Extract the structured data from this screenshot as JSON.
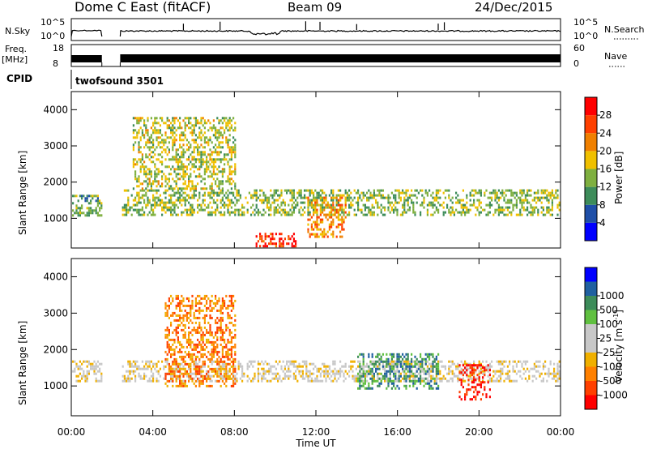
{
  "header": {
    "station": "Dome C East (fitACF)",
    "beam": "Beam 09",
    "date": "24/Dec/2015"
  },
  "noise_panel": {
    "left_label": "N.Sky",
    "right_label": "N.Search",
    "left_ticks": [
      "10^5",
      "10^0"
    ],
    "right_ticks": [
      "10^5",
      "10^0"
    ]
  },
  "freq_panel": {
    "left_label_1": "Freq.",
    "left_label_2": "[MHz]",
    "right_label": "Nave",
    "left_ticks": [
      "18",
      "8"
    ],
    "right_ticks": [
      "60",
      "0"
    ]
  },
  "cpid_panel": {
    "label": "CPID",
    "program": "twofsound 3501"
  },
  "x_axis": {
    "label": "Time UT",
    "ticks": [
      "00:00",
      "04:00",
      "08:00",
      "12:00",
      "16:00",
      "20:00",
      "00:00"
    ]
  },
  "colors": {
    "frame": "#000000",
    "power_scale": [
      "#0000ff",
      "#1f4fa8",
      "#3d8c5a",
      "#7fb040",
      "#f0c000",
      "#f08000",
      "#ff4000",
      "#ff0000"
    ],
    "velocity_scale": [
      "#ff0000",
      "#ff4000",
      "#ff8000",
      "#f0b000",
      "#c8c8c8",
      "#c8c8c8",
      "#60c040",
      "#3d8c5a",
      "#2060a0",
      "#0000ff"
    ]
  },
  "chart_data": [
    {
      "type": "heatmap",
      "title": "",
      "xlabel": "Time UT",
      "ylabel": "Slant Range [km]",
      "xlim_hours": [
        0,
        24
      ],
      "ylim": [
        180,
        4500
      ],
      "yticks": [
        1000,
        2000,
        3000,
        4000
      ],
      "colorbar": {
        "label": "Power [dB]",
        "range": [
          0,
          32
        ],
        "ticks": [
          4,
          8,
          12,
          16,
          20,
          24,
          28
        ]
      },
      "gaps_hours": [
        [
          1.5,
          2.4
        ]
      ],
      "features": [
        {
          "description_hours": [
            0,
            1.5
          ],
          "range_km": [
            1100,
            1650
          ],
          "level_db": 12
        },
        {
          "description_hours": [
            2.4,
            24
          ],
          "range_km": [
            1100,
            1800
          ],
          "level_db": 14
        },
        {
          "description_hours": [
            9.0,
            11.0
          ],
          "range_km": [
            200,
            600
          ],
          "level_db": 28
        },
        {
          "description_hours": [
            11.5,
            13.5
          ],
          "range_km": [
            500,
            1600
          ],
          "level_db": 22
        },
        {
          "description_hours": [
            3.0,
            8.0
          ],
          "range_km": [
            1800,
            3800
          ],
          "level_db": 16
        }
      ]
    },
    {
      "type": "heatmap",
      "title": "",
      "xlabel": "Time UT",
      "ylabel": "Slant Range [km]",
      "xlim_hours": [
        0,
        24
      ],
      "ylim": [
        180,
        4500
      ],
      "yticks": [
        1000,
        2000,
        3000,
        4000
      ],
      "colorbar": {
        "label": "Velocity [m s-1]",
        "tick_labels": [
          "-1000",
          "-500",
          "-100",
          "-25",
          "25",
          "100",
          "500",
          "1000"
        ]
      },
      "gaps_hours": [
        [
          1.5,
          2.4
        ]
      ],
      "features": [
        {
          "description_hours": [
            0,
            24
          ],
          "range_km": [
            1100,
            1700
          ],
          "velocity": 0
        },
        {
          "description_hours": [
            4.5,
            8.0
          ],
          "range_km": [
            1000,
            3500
          ],
          "velocity": -300
        },
        {
          "description_hours": [
            14.0,
            18.0
          ],
          "range_km": [
            900,
            1900
          ],
          "velocity": 200
        },
        {
          "description_hours": [
            19.0,
            20.5
          ],
          "range_km": [
            600,
            1600
          ],
          "velocity": -800
        }
      ]
    }
  ]
}
